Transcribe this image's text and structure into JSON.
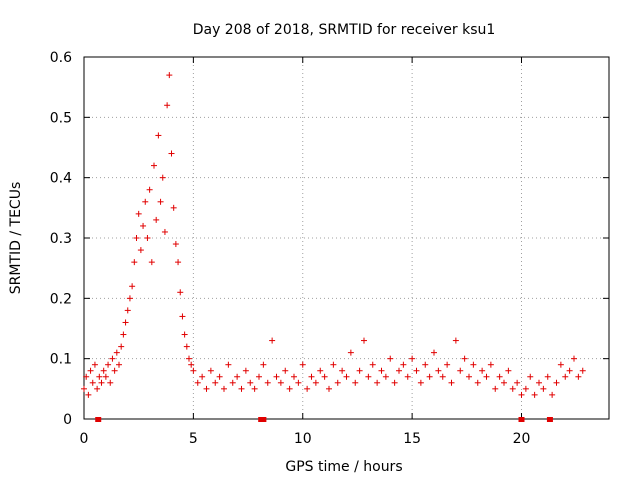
{
  "chart_data": {
    "type": "scatter",
    "title": "Day 208 of 2018, SRMTID for receiver ksu1",
    "xlabel": "GPS time / hours",
    "ylabel": "SRMTID / TECUs",
    "xlim": [
      0,
      24
    ],
    "ylim": [
      0,
      0.6
    ],
    "x_ticks": [
      0,
      5,
      10,
      15,
      20
    ],
    "y_ticks": [
      0,
      0.1,
      0.2,
      0.3,
      0.4,
      0.5,
      0.6
    ],
    "x_tick_labels": [
      "0",
      "5",
      "10",
      "15",
      "20"
    ],
    "y_tick_labels": [
      "0",
      "0.1",
      "0.2",
      "0.3",
      "0.4",
      "0.5",
      "0.6"
    ],
    "grid": true,
    "marker": "plus",
    "series_color": "#e00000",
    "series": [
      {
        "name": "SRMTID",
        "x": [
          0.0,
          0.1,
          0.2,
          0.3,
          0.4,
          0.5,
          0.6,
          0.7,
          0.8,
          0.9,
          1.0,
          1.1,
          1.2,
          1.3,
          1.4,
          1.5,
          1.6,
          1.7,
          1.8,
          1.9,
          2.0,
          2.1,
          2.2,
          2.3,
          2.4,
          2.5,
          2.6,
          2.7,
          2.8,
          2.9,
          3.0,
          3.1,
          3.2,
          3.3,
          3.4,
          3.5,
          3.6,
          3.7,
          3.8,
          3.9,
          4.0,
          4.1,
          4.2,
          4.3,
          4.4,
          4.5,
          4.6,
          4.7,
          4.8,
          4.9,
          5.0,
          5.2,
          5.4,
          5.6,
          5.8,
          6.0,
          6.2,
          6.4,
          6.6,
          6.8,
          7.0,
          7.2,
          7.4,
          7.6,
          7.8,
          8.0,
          8.2,
          8.4,
          8.6,
          8.8,
          9.0,
          9.2,
          9.4,
          9.6,
          9.8,
          10.0,
          10.2,
          10.4,
          10.6,
          10.8,
          11.0,
          11.2,
          11.4,
          11.6,
          11.8,
          12.0,
          12.2,
          12.4,
          12.6,
          12.8,
          13.0,
          13.2,
          13.4,
          13.6,
          13.8,
          14.0,
          14.2,
          14.4,
          14.6,
          14.8,
          15.0,
          15.2,
          15.4,
          15.6,
          15.8,
          16.0,
          16.2,
          16.4,
          16.6,
          16.8,
          17.0,
          17.2,
          17.4,
          17.6,
          17.8,
          18.0,
          18.2,
          18.4,
          18.6,
          18.8,
          19.0,
          19.2,
          19.4,
          19.6,
          19.8,
          20.0,
          20.2,
          20.4,
          20.6,
          20.8,
          21.0,
          21.2,
          21.4,
          21.6,
          21.8,
          22.0,
          22.2,
          22.4,
          22.6,
          22.8
        ],
        "y": [
          0.05,
          0.07,
          0.04,
          0.08,
          0.06,
          0.09,
          0.05,
          0.07,
          0.06,
          0.08,
          0.07,
          0.09,
          0.06,
          0.1,
          0.08,
          0.11,
          0.09,
          0.12,
          0.14,
          0.16,
          0.18,
          0.2,
          0.22,
          0.26,
          0.3,
          0.34,
          0.28,
          0.32,
          0.36,
          0.3,
          0.38,
          0.26,
          0.42,
          0.33,
          0.47,
          0.36,
          0.4,
          0.31,
          0.52,
          0.57,
          0.44,
          0.35,
          0.29,
          0.26,
          0.21,
          0.17,
          0.14,
          0.12,
          0.1,
          0.09,
          0.08,
          0.06,
          0.07,
          0.05,
          0.08,
          0.06,
          0.07,
          0.05,
          0.09,
          0.06,
          0.07,
          0.05,
          0.08,
          0.06,
          0.05,
          0.07,
          0.09,
          0.06,
          0.13,
          0.07,
          0.06,
          0.08,
          0.05,
          0.07,
          0.06,
          0.09,
          0.05,
          0.07,
          0.06,
          0.08,
          0.07,
          0.05,
          0.09,
          0.06,
          0.08,
          0.07,
          0.11,
          0.06,
          0.08,
          0.13,
          0.07,
          0.09,
          0.06,
          0.08,
          0.07,
          0.1,
          0.06,
          0.08,
          0.09,
          0.07,
          0.1,
          0.08,
          0.06,
          0.09,
          0.07,
          0.11,
          0.08,
          0.07,
          0.09,
          0.06,
          0.13,
          0.08,
          0.1,
          0.07,
          0.09,
          0.06,
          0.08,
          0.07,
          0.09,
          0.05,
          0.07,
          0.06,
          0.08,
          0.05,
          0.06,
          0.04,
          0.05,
          0.07,
          0.04,
          0.06,
          0.05,
          0.07,
          0.04,
          0.06,
          0.09,
          0.07,
          0.08,
          0.1,
          0.07,
          0.08
        ]
      }
    ],
    "gap_markers_x": [
      0.65,
      8.1,
      8.2,
      20.0,
      21.3
    ]
  }
}
